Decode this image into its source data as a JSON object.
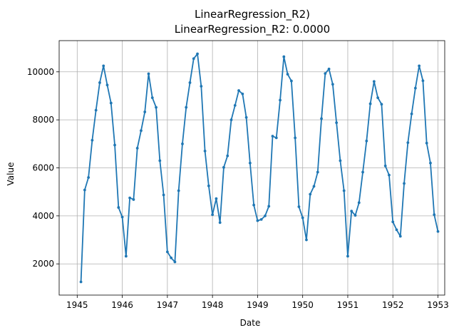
{
  "chart_data": {
    "type": "line",
    "title": "LinearRegression_R2)",
    "subtitle": "LinearRegression_R2: 0.0000",
    "xlabel": "Date",
    "ylabel": "Value",
    "xlim": [
      1944.6,
      1953.15
    ],
    "ylim": [
      700,
      11300
    ],
    "grid": true,
    "line_color": "#1f77b4",
    "x_ticks": [
      {
        "value": 1945,
        "label": "1945"
      },
      {
        "value": 1946,
        "label": "1946"
      },
      {
        "value": 1947,
        "label": "1947"
      },
      {
        "value": 1948,
        "label": "1948"
      },
      {
        "value": 1949,
        "label": "1949"
      },
      {
        "value": 1950,
        "label": "1950"
      },
      {
        "value": 1951,
        "label": "1951"
      },
      {
        "value": 1952,
        "label": "1952"
      },
      {
        "value": 1953,
        "label": "1953"
      }
    ],
    "y_ticks": [
      {
        "value": 2000,
        "label": "2000"
      },
      {
        "value": 4000,
        "label": "4000"
      },
      {
        "value": 6000,
        "label": "6000"
      },
      {
        "value": 8000,
        "label": "8000"
      },
      {
        "value": 10000,
        "label": "10000"
      }
    ],
    "series": [
      {
        "start_year": 1945,
        "start_month": 2,
        "values": [
          1250,
          5080,
          5600,
          7150,
          8400,
          9550,
          10250,
          9450,
          8700,
          6950,
          4350,
          3950,
          2320,
          4750,
          4680,
          6820,
          7550,
          8330,
          9920,
          8920,
          8520,
          6300,
          4870,
          2500,
          2250,
          2080,
          5050,
          7000,
          8520,
          9550,
          10550,
          10750,
          9400,
          6700,
          5250,
          4050,
          4720,
          3720,
          6020,
          6500,
          8000,
          8600,
          9220,
          9080,
          8100,
          6200,
          4450,
          3800,
          3850,
          4000,
          4400,
          7320,
          7250,
          8820,
          10630,
          9900,
          9620,
          7250,
          4380,
          3920,
          3000,
          4900,
          5230,
          5820,
          8050,
          9930,
          10120,
          9480,
          7880,
          6300,
          5050,
          2320,
          4200,
          4020,
          4550,
          5820,
          7120,
          8670,
          9600,
          8920,
          8650,
          6080,
          5700,
          3750,
          3420,
          3150,
          5350,
          7050,
          8250,
          9320,
          10250,
          9630,
          7030,
          6200,
          4050,
          3350
        ]
      }
    ]
  }
}
